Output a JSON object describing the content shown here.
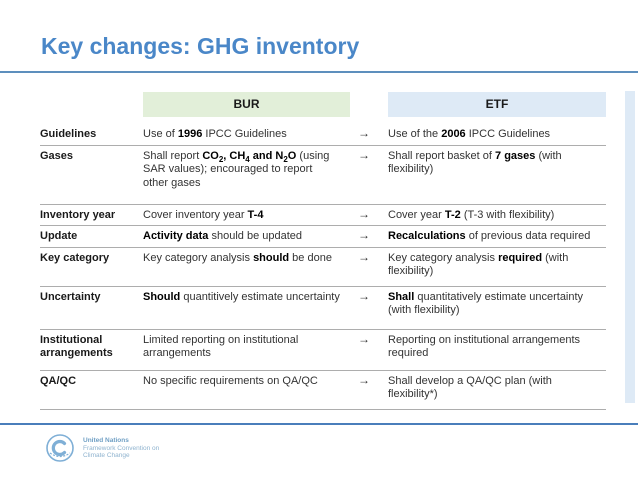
{
  "slide": {
    "title": "Key changes: GHG inventory"
  },
  "table": {
    "headers": {
      "bur": "BUR",
      "etf": "ETF"
    },
    "arrow": "→",
    "rows": [
      {
        "label": "Guidelines",
        "bur": [
          {
            "t": "Use of "
          },
          {
            "t": "1996",
            "b": true
          },
          {
            "t": " IPCC Guidelines"
          }
        ],
        "etf": [
          {
            "t": "Use of the "
          },
          {
            "t": "2006",
            "b": true
          },
          {
            "t": " IPCC Guidelines"
          }
        ]
      },
      {
        "label": "Gases",
        "bur": [
          {
            "t": "Shall report "
          },
          {
            "t": "CO",
            "b": true
          },
          {
            "t": "2",
            "b": true,
            "s": true
          },
          {
            "t": ", CH",
            "b": true
          },
          {
            "t": "4",
            "b": true,
            "s": true
          },
          {
            "t": " and N",
            "b": true
          },
          {
            "t": "2",
            "b": true,
            "s": true
          },
          {
            "t": "O",
            "b": true
          },
          {
            "t": " (using SAR values); encouraged to report other gases"
          }
        ],
        "etf": [
          {
            "t": "Shall report basket of "
          },
          {
            "t": "7 gases",
            "b": true
          },
          {
            "t": " (with flexibility)"
          }
        ]
      },
      {
        "label": "Inventory year",
        "bur": [
          {
            "t": "Cover inventory year "
          },
          {
            "t": "T-4",
            "b": true
          }
        ],
        "etf": [
          {
            "t": "Cover year "
          },
          {
            "t": "T-2",
            "b": true
          },
          {
            "t": " (T-3 with flexibility)"
          }
        ]
      },
      {
        "label": "Update",
        "bur": [
          {
            "t": "Activity data",
            "b": true
          },
          {
            "t": " should be updated"
          }
        ],
        "etf": [
          {
            "t": "Recalculations",
            "b": true
          },
          {
            "t": " of previous data required"
          }
        ]
      },
      {
        "label": "Key category",
        "bur": [
          {
            "t": "Key category analysis "
          },
          {
            "t": "should",
            "b": true
          },
          {
            "t": " be done"
          }
        ],
        "etf": [
          {
            "t": "Key category analysis "
          },
          {
            "t": "required",
            "b": true
          },
          {
            "t": " (with flexibility)"
          }
        ]
      },
      {
        "label": "Uncertainty",
        "bur": [
          {
            "t": "Should",
            "b": true
          },
          {
            "t": " quantitively estimate uncertainty"
          }
        ],
        "etf": [
          {
            "t": "Shall",
            "b": true
          },
          {
            "t": " quantitatively estimate uncertainty (with flexibility)"
          }
        ]
      },
      {
        "label": "Institutional arrangements",
        "bur": [
          {
            "t": "Limited reporting on institutional arrangements"
          }
        ],
        "etf": [
          {
            "t": "Reporting on institutional arrangements required"
          }
        ]
      },
      {
        "label": "QA/QC",
        "bur": [
          {
            "t": "No specific requirements on QA/QC"
          }
        ],
        "etf": [
          {
            "t": "Shall develop a QA/QC plan (with flexibility*)"
          }
        ]
      }
    ]
  },
  "footer": {
    "org_name": "United Nations",
    "org_line2": "Framework Convention on",
    "org_line3": "Climate Change"
  },
  "colors": {
    "title": "#4a87c8",
    "bur_header_bg": "#e2efd9",
    "etf_header_bg": "#deeaf6",
    "top_rule": "#5d8fbd",
    "bottom_rule": "#4a7ebb",
    "logo_blue": "#7fafd6"
  }
}
